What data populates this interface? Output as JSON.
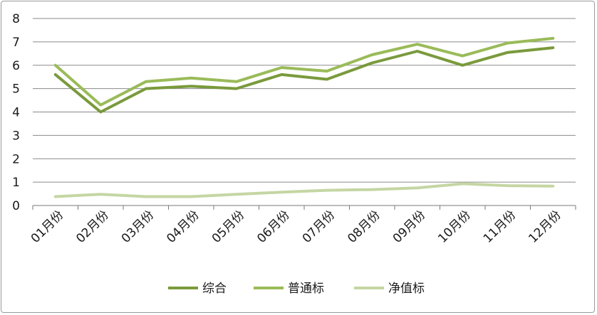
{
  "chart_data": {
    "type": "line",
    "title": "",
    "xlabel": "",
    "ylabel": "",
    "ylim": [
      0,
      8
    ],
    "yticks": [
      "0",
      "1",
      "2",
      "3",
      "4",
      "5",
      "6",
      "7",
      "8"
    ],
    "grid": "horizontal",
    "legend_position": "bottom",
    "categories": [
      "01月份",
      "02月份",
      "03月份",
      "04月份",
      "05月份",
      "06月份",
      "07月份",
      "08月份",
      "09月份",
      "10月份",
      "11月份",
      "12月份"
    ],
    "series": [
      {
        "name": "综合",
        "color": "#7a9a3c",
        "values": [
          5.6,
          4.0,
          5.0,
          5.1,
          5.0,
          5.6,
          5.4,
          6.1,
          6.6,
          6.0,
          6.55,
          6.75
        ]
      },
      {
        "name": "普通标",
        "color": "#9abb59",
        "values": [
          6.0,
          4.3,
          5.3,
          5.45,
          5.3,
          5.9,
          5.75,
          6.45,
          6.9,
          6.4,
          6.95,
          7.15
        ]
      },
      {
        "name": "净值标",
        "color": "#c5d6a3",
        "values": [
          0.38,
          0.48,
          0.38,
          0.38,
          0.48,
          0.57,
          0.65,
          0.68,
          0.75,
          0.93,
          0.85,
          0.83
        ]
      }
    ]
  }
}
